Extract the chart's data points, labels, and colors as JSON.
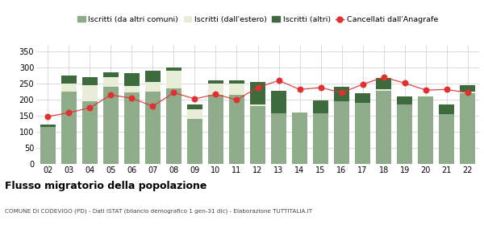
{
  "years": [
    "02",
    "03",
    "04",
    "05",
    "06",
    "07",
    "08",
    "09",
    "10",
    "11",
    "12",
    "13",
    "14",
    "15",
    "16",
    "17",
    "18",
    "19",
    "20",
    "21",
    "22"
  ],
  "iscritti_altri_comuni": [
    115,
    225,
    195,
    240,
    222,
    225,
    235,
    140,
    215,
    215,
    180,
    157,
    160,
    158,
    196,
    190,
    228,
    185,
    210,
    155,
    220
  ],
  "iscritti_estero": [
    0,
    25,
    50,
    30,
    20,
    30,
    55,
    30,
    35,
    35,
    5,
    0,
    0,
    0,
    0,
    0,
    5,
    0,
    0,
    0,
    5
  ],
  "iscritti_altri": [
    8,
    25,
    25,
    15,
    40,
    35,
    10,
    15,
    10,
    10,
    70,
    70,
    0,
    40,
    45,
    30,
    35,
    25,
    0,
    30,
    20
  ],
  "cancellati": [
    148,
    160,
    175,
    215,
    205,
    180,
    222,
    203,
    217,
    200,
    238,
    260,
    232,
    238,
    222,
    248,
    270,
    252,
    230,
    232,
    222
  ],
  "bar_color_1": "#8fac8a",
  "bar_color_2": "#e8edd8",
  "bar_color_3": "#3d6b3d",
  "line_color": "#e03030",
  "grid_color": "#cccccc",
  "background_color": "#ffffff",
  "title": "Flusso migratorio della popolazione",
  "subtitle": "COMUNE DI CODEVIGO (PD) - Dati ISTAT (bilancio demografico 1 gen-31 dic) - Elaborazione TUTTITALIA.IT",
  "legend_labels": [
    "Iscritti (da altri comuni)",
    "Iscritti (dall'estero)",
    "Iscritti (altri)",
    "Cancellati dall'Anagrafe"
  ],
  "ylim": [
    0,
    370
  ],
  "yticks": [
    0,
    50,
    100,
    150,
    200,
    250,
    300,
    350
  ]
}
